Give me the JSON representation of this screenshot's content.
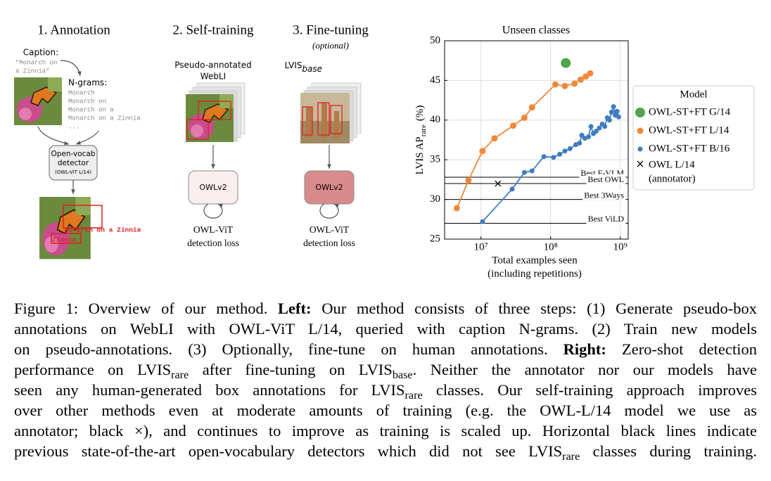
{
  "diagram": {
    "steps": [
      "1. Annotation",
      "2. Self-training",
      "3. Fine-tuning"
    ],
    "optional": "(optional)",
    "caption_label": "Caption:",
    "caption_text": [
      "\"Monarch on",
      "a Zinnia\""
    ],
    "ngrams_label": "N-grams:",
    "ngrams": [
      "Monarch",
      "Monarch on",
      "Monarch on a",
      "Monarch on a Zinnia",
      "..."
    ],
    "detector": [
      "Open-vocab",
      "detector"
    ],
    "detector_model": "(OWL-ViT L/14)",
    "box_labels": [
      "Monarch on a Zinnia",
      "Zinnia"
    ],
    "pseudo_label": [
      "Pseudo-annotated",
      "WebLI"
    ],
    "lvis_label": "LVIS",
    "lvis_sub": "base",
    "model": "OWLv2",
    "loss": [
      "OWL-ViT",
      "detection loss"
    ]
  },
  "chart_data": {
    "type": "line",
    "title": "Unseen classes",
    "ylabel": "LVIS AP",
    "ylabel_sub": "rare",
    "ylabel_suffix": "(%)",
    "xlabel": [
      "Total examples seen",
      "(including repetitions)"
    ],
    "xscale": "log",
    "xlim": [
      3000000,
      1300000000
    ],
    "xticks": [
      {
        "value": 10000000,
        "label": "10⁷"
      },
      {
        "value": 100000000,
        "label": "10⁸"
      },
      {
        "value": 1000000000,
        "label": "10⁹"
      }
    ],
    "ylim": [
      25,
      50
    ],
    "yticks": [
      25,
      30,
      35,
      40,
      45,
      50
    ],
    "grid": true,
    "legend_title": "Model",
    "legend_position": "right",
    "series": [
      {
        "name": "OWL-ST+FT G/14",
        "color": "#4ea64a",
        "line": false,
        "x": [
          165000000
        ],
        "values": [
          47.2
        ]
      },
      {
        "name": "OWL-ST+FT L/14",
        "color": "#f0883a",
        "line": true,
        "x": [
          4500000,
          6600000,
          10500000,
          15600000,
          29000000,
          42000000,
          54000000,
          117000000,
          160000000,
          220000000,
          270000000,
          320000000,
          370000000
        ],
        "values": [
          28.9,
          32.4,
          36.1,
          37.7,
          39.3,
          40.3,
          41.6,
          44.5,
          44.3,
          44.6,
          45.1,
          45.5,
          45.9
        ]
      },
      {
        "name": "OWL-ST+FT B/16",
        "color": "#3f7bbf",
        "line": true,
        "x": [
          10500000,
          28000000,
          42000000,
          54000000,
          80000000,
          110000000,
          135000000,
          160000000,
          190000000,
          230000000,
          260000000,
          280000000,
          310000000,
          350000000,
          380000000,
          410000000,
          450000000,
          500000000,
          550000000,
          600000000,
          650000000,
          700000000,
          750000000,
          800000000,
          850000000,
          900000000,
          950000000
        ],
        "values": [
          27.2,
          31.3,
          33.4,
          33.6,
          35.4,
          35.3,
          35.7,
          36.1,
          36.4,
          36.9,
          37.1,
          38.1,
          37.7,
          37.9,
          39.2,
          38.3,
          38.6,
          39.0,
          39.5,
          39.2,
          40.3,
          40.0,
          41.0,
          41.7,
          40.6,
          41.1,
          40.4
        ]
      }
    ],
    "annotator": {
      "name": [
        "OWL L/14",
        "(annotator)"
      ],
      "color": "#000000",
      "x": 17500000,
      "value": 32.0
    },
    "reference_lines": [
      {
        "label": "Best F-VLM",
        "value": 32.8
      },
      {
        "label": "Best OWL",
        "value": 32.0
      },
      {
        "label": "Best 3Ways",
        "value": 30.0
      },
      {
        "label": "Best ViLD",
        "value": 27.0
      }
    ]
  },
  "caption": {
    "lines": [
      [
        {
          "text": "Figure 1: Overview of our method. "
        },
        {
          "text": "Left:",
          "style": "bold"
        },
        {
          "text": " Our method consists of three steps: (1) Generate pseudo-box"
        }
      ],
      [
        {
          "text": "annotations on WebLI with OWL-ViT L/14, queried with caption N-grams. (2) Train new models"
        }
      ],
      [
        {
          "text": "on pseudo-annotations. (3) Optionally, fine-tune on human annotations. "
        },
        {
          "text": "Right:",
          "style": "bold"
        },
        {
          "text": " Zero-shot detection"
        }
      ],
      [
        {
          "text": "performance on LVIS"
        },
        {
          "text": "rare",
          "style": "sub"
        },
        {
          "text": " after fine-tuning on LVIS"
        },
        {
          "text": "base",
          "style": "sub"
        },
        {
          "text": ". Neither the annotator nor our models have"
        }
      ],
      [
        {
          "text": "seen any human-generated box annotations for LVIS"
        },
        {
          "text": "rare",
          "style": "sub"
        },
        {
          "text": " classes. Our self-training approach improves"
        }
      ],
      [
        {
          "text": "over other methods even at moderate amounts of training (e.g. the OWL-L/14 model we use as"
        }
      ],
      [
        {
          "text": "annotator; black ×), and continues to improve as training is scaled up. Horizontal black lines indicate"
        }
      ],
      [
        {
          "text": "previous state-of-the-art open-vocabulary detectors which did not see LVIS"
        },
        {
          "text": "rare",
          "style": "sub"
        },
        {
          "text": " classes during training."
        }
      ]
    ]
  }
}
